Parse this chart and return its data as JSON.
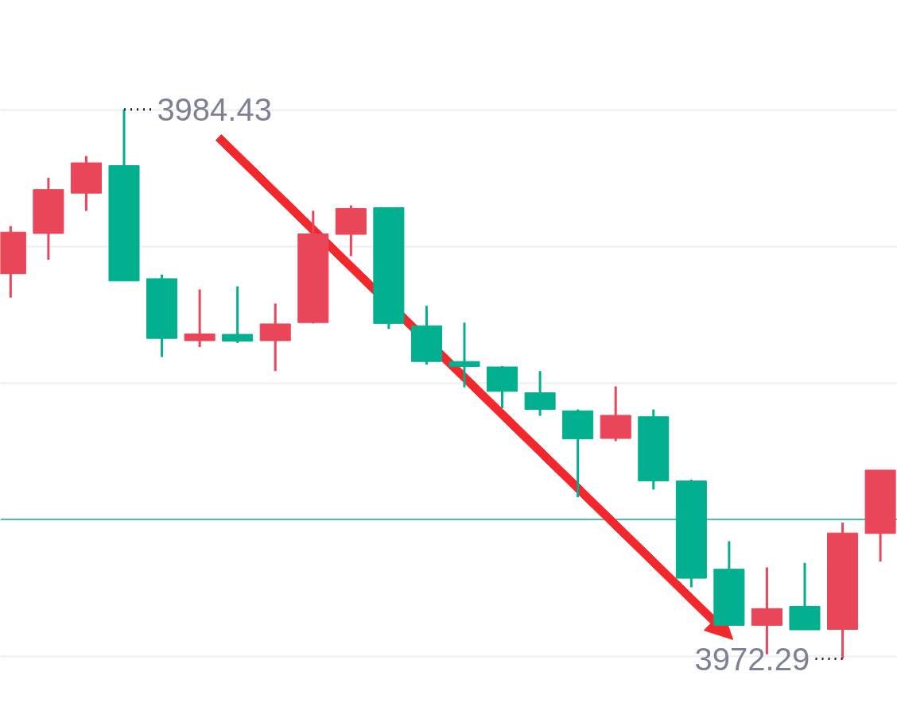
{
  "chart_data": {
    "type": "candlestick",
    "categories": [
      null,
      null,
      null,
      null,
      null,
      null,
      null,
      null,
      null,
      null,
      null,
      null,
      null,
      null,
      null,
      null,
      null,
      null,
      null,
      null,
      null,
      null,
      null,
      null
    ],
    "ohlc": [
      [
        3980.8,
        3981.85,
        3980.27,
        3981.72
      ],
      [
        3981.69,
        3982.92,
        3981.11,
        3982.66
      ],
      [
        3982.58,
        3983.4,
        3982.19,
        3983.25
      ],
      [
        3983.19,
        3984.43,
        3980.64,
        3980.64
      ],
      [
        3980.69,
        3980.78,
        3978.96,
        3979.37
      ],
      [
        3979.32,
        3980.45,
        3979.18,
        3979.47
      ],
      [
        3979.46,
        3980.52,
        3979.27,
        3979.31
      ],
      [
        3979.32,
        3980.14,
        3978.65,
        3979.69
      ],
      [
        3979.72,
        3982.19,
        3979.7,
        3981.68
      ],
      [
        3981.67,
        3982.31,
        3981.19,
        3982.24
      ],
      [
        3982.26,
        3982.27,
        3979.58,
        3979.7
      ],
      [
        3979.65,
        3980.09,
        3978.79,
        3978.86
      ],
      [
        3978.86,
        3979.72,
        3978.29,
        3978.75
      ],
      [
        3978.74,
        3978.76,
        3977.83,
        3978.2
      ],
      [
        3978.17,
        3978.65,
        3977.66,
        3977.8
      ],
      [
        3977.77,
        3977.8,
        3975.86,
        3977.15
      ],
      [
        3977.16,
        3978.31,
        3977.1,
        3977.67
      ],
      [
        3977.64,
        3977.8,
        3976.03,
        3976.22
      ],
      [
        3976.22,
        3976.25,
        3973.87,
        3974.07
      ],
      [
        3974.27,
        3974.89,
        3973.03,
        3973.03
      ],
      [
        3973.03,
        3974.31,
        3972.39,
        3973.4
      ],
      [
        3973.45,
        3974.41,
        3972.93,
        3972.93
      ],
      [
        3972.94,
        3975.3,
        3972.29,
        3975.07
      ],
      [
        3975.06,
        3976.46,
        3974.44,
        3976.46
      ]
    ],
    "colors": [
      "#ea4659",
      "#ea4659",
      "#ea4659",
      "#02af8e",
      "#02af8e",
      "#ea4659",
      "#02af8e",
      "#ea4659",
      "#ea4659",
      "#ea4659",
      "#02af8e",
      "#02af8e",
      "#02af8e",
      "#02af8e",
      "#02af8e",
      "#02af8e",
      "#ea4659",
      "#02af8e",
      "#02af8e",
      "#02af8e",
      "#ea4659",
      "#02af8e",
      "#ea4659",
      "#ea4659"
    ],
    "ylim": [
      3971.15,
      3986.84
    ],
    "yticks": [
      {
        "value": 3984.42,
        "label": null
      },
      {
        "value": 3981.4,
        "label": null
      },
      {
        "value": 3978.38,
        "label": null
      },
      {
        "value": 3975.36,
        "label": null
      },
      {
        "value": 3972.34,
        "label": null
      }
    ],
    "grid": "y",
    "tick_labels": false,
    "ref_lines": [
      {
        "axis": "y",
        "value": 3975.37,
        "color": "#1eae8e"
      }
    ],
    "annotations": [
      "3984.43",
      "3972.29"
    ]
  }
}
